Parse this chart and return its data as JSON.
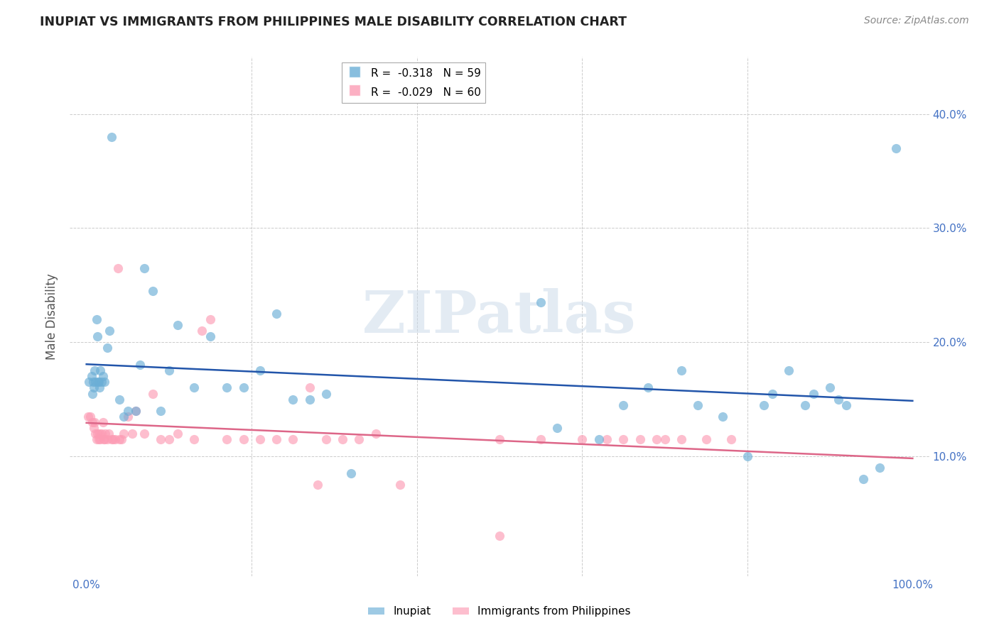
{
  "title": "INUPIAT VS IMMIGRANTS FROM PHILIPPINES MALE DISABILITY CORRELATION CHART",
  "source": "Source: ZipAtlas.com",
  "ylabel": "Male Disability",
  "xlim": [
    -0.02,
    1.02
  ],
  "ylim": [
    -0.005,
    0.45
  ],
  "xtick_positions": [
    0.0,
    1.0
  ],
  "xtick_labels": [
    "0.0%",
    "100.0%"
  ],
  "ytick_positions": [
    0.1,
    0.2,
    0.3,
    0.4
  ],
  "ytick_labels": [
    "10.0%",
    "20.0%",
    "30.0%",
    "40.0%"
  ],
  "grid_yticks": [
    0.0,
    0.1,
    0.2,
    0.3,
    0.4
  ],
  "legend_r1": "R =  -0.318",
  "legend_n1": "N = 59",
  "legend_r2": "R =  -0.029",
  "legend_n2": "N = 60",
  "blue_color": "#6baed6",
  "pink_color": "#fc9cb4",
  "line_blue": "#2255aa",
  "line_pink": "#dd6688",
  "watermark": "ZIPatlas",
  "inupiat_x": [
    0.003,
    0.006,
    0.007,
    0.008,
    0.009,
    0.01,
    0.011,
    0.012,
    0.013,
    0.014,
    0.015,
    0.016,
    0.017,
    0.018,
    0.02,
    0.022,
    0.025,
    0.028,
    0.03,
    0.04,
    0.045,
    0.05,
    0.06,
    0.065,
    0.07,
    0.08,
    0.09,
    0.1,
    0.11,
    0.13,
    0.15,
    0.17,
    0.19,
    0.21,
    0.23,
    0.25,
    0.27,
    0.29,
    0.32,
    0.55,
    0.57,
    0.62,
    0.65,
    0.68,
    0.72,
    0.74,
    0.77,
    0.8,
    0.82,
    0.83,
    0.85,
    0.87,
    0.88,
    0.9,
    0.91,
    0.92,
    0.94,
    0.96,
    0.98
  ],
  "inupiat_y": [
    0.165,
    0.17,
    0.155,
    0.165,
    0.16,
    0.175,
    0.165,
    0.22,
    0.205,
    0.165,
    0.165,
    0.16,
    0.175,
    0.165,
    0.17,
    0.165,
    0.195,
    0.21,
    0.38,
    0.15,
    0.135,
    0.14,
    0.14,
    0.18,
    0.265,
    0.245,
    0.14,
    0.175,
    0.215,
    0.16,
    0.205,
    0.16,
    0.16,
    0.175,
    0.225,
    0.15,
    0.15,
    0.155,
    0.085,
    0.235,
    0.125,
    0.115,
    0.145,
    0.16,
    0.175,
    0.145,
    0.135,
    0.1,
    0.145,
    0.155,
    0.175,
    0.145,
    0.155,
    0.16,
    0.15,
    0.145,
    0.08,
    0.09,
    0.37
  ],
  "philippines_x": [
    0.002,
    0.005,
    0.007,
    0.009,
    0.01,
    0.011,
    0.012,
    0.013,
    0.015,
    0.016,
    0.017,
    0.018,
    0.02,
    0.021,
    0.022,
    0.023,
    0.025,
    0.027,
    0.03,
    0.032,
    0.035,
    0.038,
    0.04,
    0.042,
    0.045,
    0.05,
    0.055,
    0.06,
    0.07,
    0.08,
    0.09,
    0.1,
    0.11,
    0.13,
    0.14,
    0.15,
    0.17,
    0.19,
    0.21,
    0.23,
    0.25,
    0.27,
    0.29,
    0.31,
    0.33,
    0.35,
    0.38,
    0.28,
    0.5,
    0.55,
    0.6,
    0.63,
    0.65,
    0.67,
    0.69,
    0.7,
    0.72,
    0.75,
    0.78,
    0.5
  ],
  "philippines_y": [
    0.135,
    0.135,
    0.13,
    0.125,
    0.13,
    0.12,
    0.115,
    0.12,
    0.115,
    0.12,
    0.115,
    0.12,
    0.13,
    0.115,
    0.115,
    0.12,
    0.115,
    0.12,
    0.115,
    0.115,
    0.115,
    0.265,
    0.115,
    0.115,
    0.12,
    0.135,
    0.12,
    0.14,
    0.12,
    0.155,
    0.115,
    0.115,
    0.12,
    0.115,
    0.21,
    0.22,
    0.115,
    0.115,
    0.115,
    0.115,
    0.115,
    0.16,
    0.115,
    0.115,
    0.115,
    0.12,
    0.075,
    0.075,
    0.115,
    0.115,
    0.115,
    0.115,
    0.115,
    0.115,
    0.115,
    0.115,
    0.115,
    0.115,
    0.115,
    0.03
  ]
}
